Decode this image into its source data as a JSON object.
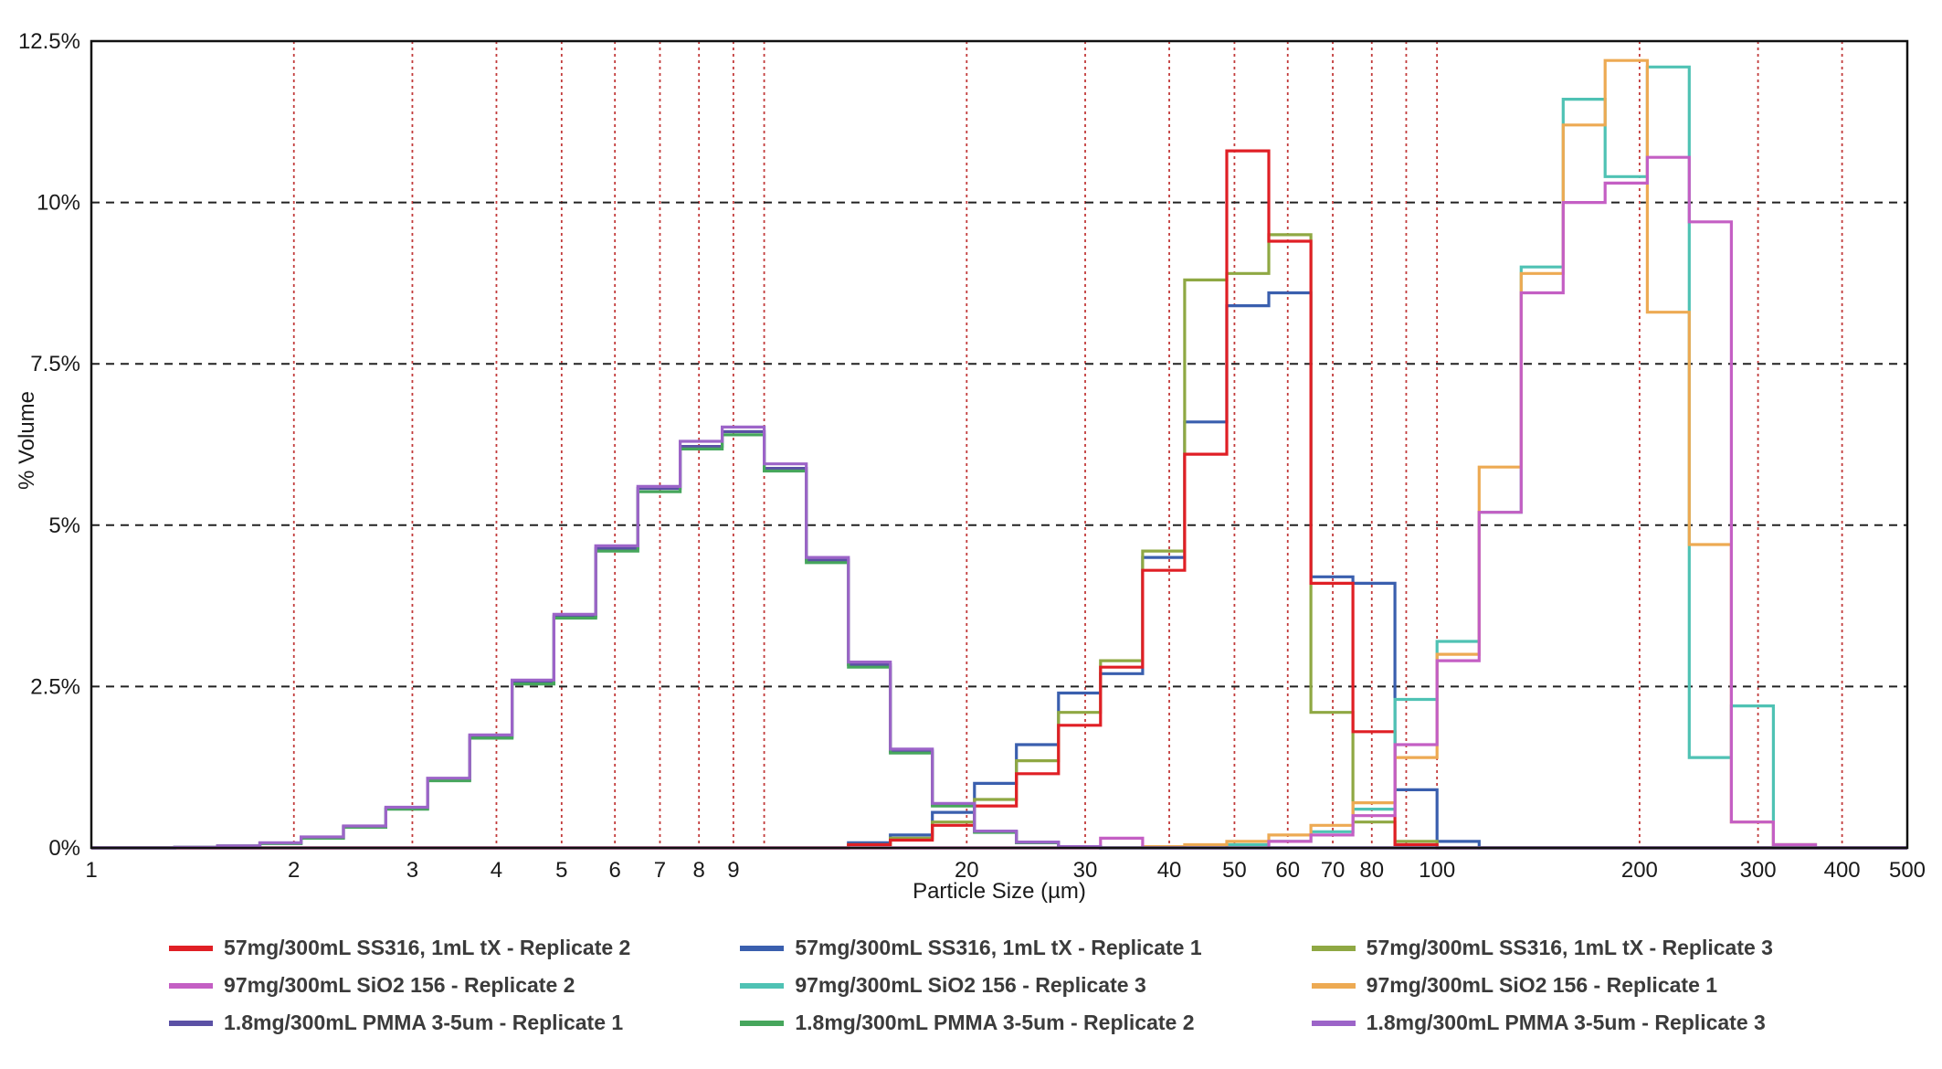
{
  "chart_data": {
    "type": "step-histogram",
    "title": "",
    "xlabel": "Particle Size (µm)",
    "ylabel": "% Volume",
    "x_scale": "log",
    "x_range": [
      1,
      500
    ],
    "y_range": [
      0,
      12.5
    ],
    "grid": {
      "horizontal_color": "#222222",
      "vertical_color": "#c23b3b"
    },
    "y_tick_values": [
      0,
      2.5,
      5,
      7.5,
      10,
      12.5
    ],
    "y_tick_labels": [
      "0%",
      "2.5%",
      "5%",
      "7.5%",
      "10%",
      "12.5%"
    ],
    "x_tick_values": [
      1,
      2,
      3,
      4,
      5,
      6,
      7,
      8,
      9,
      20,
      30,
      40,
      50,
      60,
      70,
      80,
      100,
      200,
      300,
      400,
      500
    ],
    "x_tick_labels": [
      "1",
      "2",
      "3",
      "4",
      "5",
      "6",
      "7",
      "8",
      "9",
      "20",
      "30",
      "40",
      "50",
      "60",
      "70",
      "80",
      "100",
      "200",
      "300",
      "400",
      "500"
    ],
    "x_gridlines": [
      2,
      3,
      4,
      5,
      6,
      7,
      8,
      9,
      10,
      20,
      30,
      40,
      50,
      60,
      70,
      80,
      90,
      100,
      200,
      300,
      400,
      500
    ],
    "bin_edges": [
      1,
      1.15,
      1.33,
      1.54,
      1.78,
      2.05,
      2.37,
      2.74,
      3.16,
      3.65,
      4.22,
      4.87,
      5.62,
      6.49,
      7.5,
      8.66,
      10,
      11.55,
      13.34,
      15.4,
      17.78,
      20.54,
      23.71,
      27.38,
      31.62,
      36.52,
      42.17,
      48.7,
      56.23,
      64.94,
      74.99,
      86.6,
      100,
      115.5,
      133.4,
      154,
      177.8,
      205.4,
      237.1,
      273.8,
      316.2,
      365.2,
      421.7,
      487,
      500
    ],
    "draw_order": [
      1,
      2,
      0,
      4,
      5,
      3,
      6,
      7,
      8
    ],
    "series": [
      {
        "id": "ss316-rep2",
        "name": "57mg/300mL SS316, 1mL tX - Replicate 2",
        "color": "#e01f25",
        "values": [
          0,
          0,
          0,
          0,
          0,
          0,
          0,
          0,
          0,
          0,
          0,
          0,
          0,
          0,
          0,
          0,
          0,
          0,
          0.05,
          0.12,
          0.35,
          0.65,
          1.15,
          1.9,
          2.8,
          4.3,
          6.1,
          10.8,
          9.4,
          4.1,
          1.8,
          0.05,
          0,
          0,
          0,
          0,
          0,
          0,
          0,
          0,
          0,
          0,
          0,
          0
        ]
      },
      {
        "id": "ss316-rep1",
        "name": "57mg/300mL SS316, 1mL tX - Replicate 1",
        "color": "#3a5fae",
        "values": [
          0,
          0,
          0,
          0,
          0,
          0,
          0,
          0,
          0,
          0,
          0,
          0,
          0,
          0,
          0,
          0,
          0,
          0,
          0.08,
          0.2,
          0.55,
          1.0,
          1.6,
          2.4,
          2.7,
          4.5,
          6.6,
          8.4,
          8.6,
          4.2,
          4.1,
          0.9,
          0.1,
          0,
          0,
          0,
          0,
          0,
          0,
          0,
          0,
          0,
          0,
          0
        ]
      },
      {
        "id": "ss316-rep3",
        "name": "57mg/300mL SS316, 1mL tX - Replicate 3",
        "color": "#8fa843",
        "values": [
          0,
          0,
          0,
          0,
          0,
          0,
          0,
          0,
          0,
          0,
          0,
          0,
          0,
          0,
          0,
          0,
          0,
          0,
          0.05,
          0.15,
          0.4,
          0.75,
          1.35,
          2.1,
          2.9,
          4.6,
          8.8,
          8.9,
          9.5,
          2.1,
          0.4,
          0.1,
          0,
          0,
          0,
          0,
          0,
          0,
          0,
          0,
          0,
          0,
          0,
          0
        ]
      },
      {
        "id": "sio2-rep2",
        "name": "97mg/300mL SiO2 156 - Replicate 2",
        "color": "#c45fc4",
        "values": [
          0,
          0,
          0,
          0,
          0,
          0,
          0,
          0,
          0,
          0,
          0,
          0,
          0,
          0,
          0,
          0,
          0,
          0,
          0,
          0,
          0,
          0,
          0,
          0,
          0.15,
          0,
          0,
          0,
          0.1,
          0.2,
          0.5,
          1.6,
          2.9,
          5.2,
          8.6,
          10.0,
          10.3,
          10.7,
          9.7,
          0.4,
          0.05,
          0,
          0,
          0
        ]
      },
      {
        "id": "sio2-rep3",
        "name": "97mg/300mL SiO2 156 - Replicate 3",
        "color": "#4fc2b4",
        "values": [
          0,
          0,
          0,
          0,
          0,
          0,
          0,
          0,
          0,
          0,
          0,
          0,
          0,
          0,
          0,
          0,
          0,
          0,
          0,
          0,
          0,
          0,
          0,
          0,
          0,
          0,
          0,
          0.05,
          0.1,
          0.25,
          0.6,
          2.3,
          3.2,
          5.2,
          9.0,
          11.6,
          10.4,
          12.1,
          1.4,
          2.2,
          0.05,
          0,
          0,
          0
        ]
      },
      {
        "id": "sio2-rep1",
        "name": "97mg/300mL SiO2 156 - Replicate 1",
        "color": "#edaa53",
        "values": [
          0,
          0,
          0,
          0,
          0,
          0,
          0,
          0,
          0,
          0,
          0,
          0,
          0,
          0,
          0,
          0,
          0,
          0,
          0,
          0,
          0,
          0,
          0,
          0,
          0,
          0.02,
          0.05,
          0.1,
          0.2,
          0.35,
          0.7,
          1.4,
          3.0,
          5.9,
          8.9,
          11.2,
          12.2,
          8.3,
          4.7,
          0.4,
          0.05,
          0,
          0,
          0
        ]
      },
      {
        "id": "pmma-rep1",
        "name": "1.8mg/300mL PMMA 3-5um - Replicate 1",
        "color": "#5b51a5",
        "values": [
          0,
          0,
          0.01,
          0.03,
          0.07,
          0.16,
          0.33,
          0.61,
          1.06,
          1.72,
          2.57,
          3.59,
          4.64,
          5.57,
          6.22,
          6.45,
          5.88,
          4.46,
          2.84,
          1.5,
          0.67,
          0.25,
          0.08,
          0.02,
          0,
          0,
          0,
          0,
          0,
          0,
          0,
          0,
          0,
          0,
          0,
          0,
          0,
          0,
          0,
          0,
          0,
          0,
          0,
          0
        ]
      },
      {
        "id": "pmma-rep2",
        "name": "1.8mg/300mL PMMA 3-5um - Replicate 2",
        "color": "#46a65c",
        "values": [
          0,
          0,
          0.01,
          0.03,
          0.07,
          0.15,
          0.32,
          0.6,
          1.04,
          1.7,
          2.54,
          3.56,
          4.6,
          5.52,
          6.18,
          6.4,
          5.84,
          4.42,
          2.8,
          1.47,
          0.65,
          0.24,
          0.08,
          0.02,
          0,
          0,
          0,
          0,
          0,
          0,
          0,
          0,
          0,
          0,
          0,
          0,
          0,
          0,
          0,
          0,
          0,
          0,
          0,
          0
        ]
      },
      {
        "id": "pmma-rep3",
        "name": "1.8mg/300mL PMMA 3-5um - Replicate 3",
        "color": "#9c64c8",
        "values": [
          0,
          0,
          0.01,
          0.03,
          0.08,
          0.17,
          0.34,
          0.63,
          1.08,
          1.75,
          2.6,
          3.62,
          4.68,
          5.6,
          6.3,
          6.52,
          5.95,
          4.5,
          2.88,
          1.53,
          0.69,
          0.26,
          0.09,
          0.02,
          0,
          0,
          0,
          0,
          0,
          0,
          0,
          0,
          0,
          0,
          0,
          0,
          0,
          0,
          0,
          0,
          0,
          0,
          0,
          0
        ]
      }
    ]
  }
}
